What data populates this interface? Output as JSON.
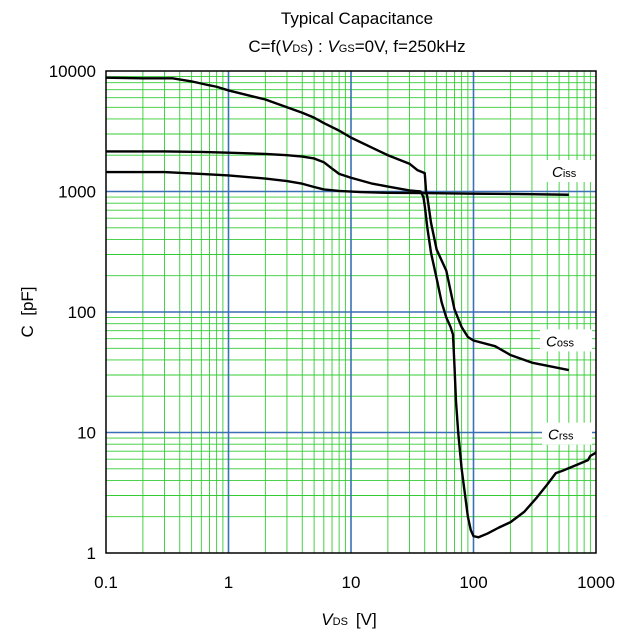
{
  "chart_data": {
    "type": "line",
    "title": "Typical Capacitance",
    "subtitle": {
      "prefix": "C=f(",
      "var1_main": "V",
      "var1_sub": "DS",
      "mid": ") : ",
      "var2_main": "V",
      "var2_sub": "GS",
      "suffix": "=0V, f=250kHz"
    },
    "x_scale": "log",
    "y_scale": "log",
    "xlim": [
      0.1,
      1000
    ],
    "ylim": [
      1,
      10000
    ],
    "x_ticks": [
      "0.1",
      "1",
      "10",
      "100",
      "1000"
    ],
    "y_ticks": [
      "1",
      "10",
      "100",
      "1000",
      "10000"
    ],
    "xlabel": {
      "main": "V",
      "sub": "DS",
      "unit": "[V]"
    },
    "ylabel": "C  [pF]",
    "grid": {
      "minor_color": "#33cc33",
      "major_color": "#3b6fb6"
    },
    "series": [
      {
        "name_main": "C",
        "name_sub": "iss",
        "color": "#000000",
        "points": [
          [
            0.1,
            1450
          ],
          [
            0.3,
            1450
          ],
          [
            0.6,
            1400
          ],
          [
            1,
            1360
          ],
          [
            2,
            1280
          ],
          [
            3,
            1220
          ],
          [
            4,
            1160
          ],
          [
            5,
            1090
          ],
          [
            6,
            1040
          ],
          [
            8,
            1010
          ],
          [
            12,
            990
          ],
          [
            20,
            975
          ],
          [
            40,
            970
          ],
          [
            100,
            960
          ],
          [
            300,
            950
          ],
          [
            600,
            940
          ]
        ]
      },
      {
        "name_main": "C",
        "name_sub": "oss",
        "color": "#000000",
        "points": [
          [
            0.1,
            8800
          ],
          [
            0.2,
            8700
          ],
          [
            0.35,
            8700
          ],
          [
            0.5,
            8200
          ],
          [
            0.7,
            7600
          ],
          [
            0.8,
            7400
          ],
          [
            1,
            6900
          ],
          [
            2,
            5800
          ],
          [
            3,
            5000
          ],
          [
            4,
            4500
          ],
          [
            5,
            4100
          ],
          [
            6,
            3700
          ],
          [
            8,
            3200
          ],
          [
            10,
            2800
          ],
          [
            15,
            2300
          ],
          [
            20,
            2000
          ],
          [
            30,
            1700
          ],
          [
            35,
            1500
          ],
          [
            40,
            1420
          ],
          [
            41,
            1000
          ],
          [
            42,
            900
          ],
          [
            45,
            550
          ],
          [
            50,
            330
          ],
          [
            60,
            220
          ],
          [
            70,
            105
          ],
          [
            80,
            75
          ],
          [
            90,
            62
          ],
          [
            100,
            58
          ],
          [
            150,
            52
          ],
          [
            200,
            44
          ],
          [
            300,
            38
          ],
          [
            600,
            33
          ]
        ]
      },
      {
        "name_main": "C",
        "name_sub": "rss",
        "color": "#000000",
        "points": [
          [
            0.1,
            2150
          ],
          [
            0.3,
            2150
          ],
          [
            0.6,
            2130
          ],
          [
            1,
            2100
          ],
          [
            2,
            2050
          ],
          [
            3,
            2000
          ],
          [
            4,
            1950
          ],
          [
            5,
            1880
          ],
          [
            6,
            1750
          ],
          [
            7,
            1550
          ],
          [
            8,
            1400
          ],
          [
            10,
            1300
          ],
          [
            15,
            1160
          ],
          [
            20,
            1100
          ],
          [
            30,
            1020
          ],
          [
            37,
            1000
          ],
          [
            39,
            900
          ],
          [
            40,
            760
          ],
          [
            42,
            500
          ],
          [
            45,
            310
          ],
          [
            50,
            190
          ],
          [
            55,
            120
          ],
          [
            60,
            90
          ],
          [
            65,
            75
          ],
          [
            68,
            65
          ],
          [
            70,
            35
          ],
          [
            72,
            18
          ],
          [
            75,
            10
          ],
          [
            80,
            5
          ],
          [
            90,
            2
          ],
          [
            95,
            1.55
          ],
          [
            100,
            1.38
          ],
          [
            110,
            1.35
          ],
          [
            130,
            1.45
          ],
          [
            160,
            1.62
          ],
          [
            200,
            1.8
          ],
          [
            260,
            2.2
          ],
          [
            330,
            2.9
          ],
          [
            400,
            3.7
          ],
          [
            470,
            4.6
          ],
          [
            530,
            4.8
          ],
          [
            700,
            5.4
          ],
          [
            860,
            5.9
          ],
          [
            900,
            6.4
          ],
          [
            1000,
            6.8
          ]
        ]
      }
    ]
  }
}
